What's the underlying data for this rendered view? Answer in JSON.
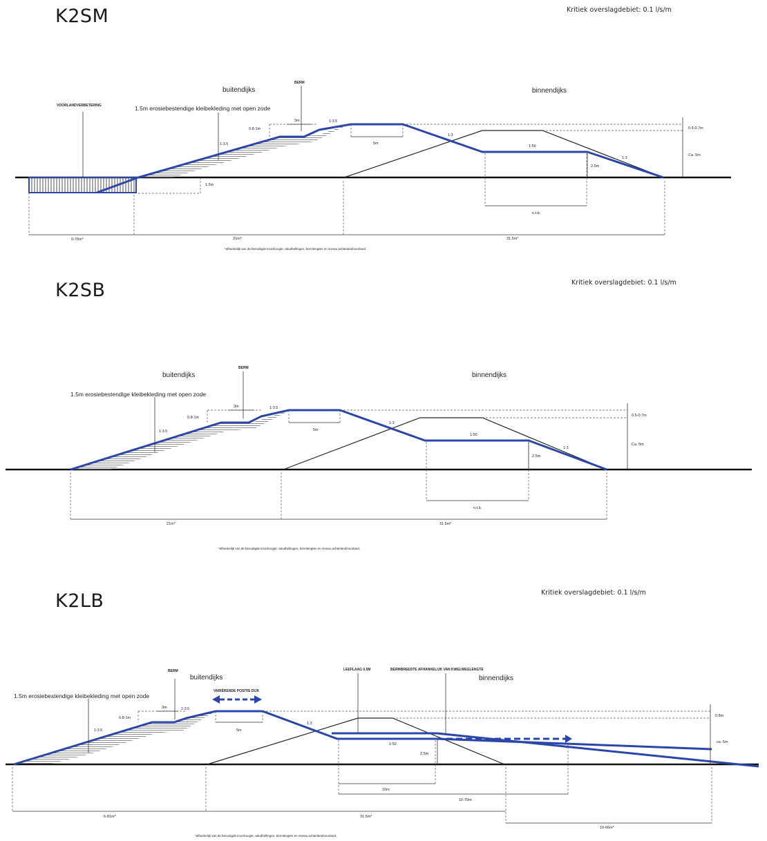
{
  "diagrams": [
    {
      "title": "K2SM",
      "kritiek": "Kritiek overslagdebiet: 0.1 l/s/m",
      "labels": {
        "buitendijks": "buitendijks",
        "binnendijks": "binnendijks",
        "kleibekleding": "1.5m erosiebestendige kleibekleding met open zode",
        "berm": "BERM",
        "voorland": "VOORLANDVERBETERING",
        "h_berm": "0.8-1m",
        "w_berm": "3m",
        "slope_upper": "1:3.5",
        "slope_lower": "1:3.5",
        "crest": "5m",
        "slope_in": "1:3",
        "flat": "1:50",
        "slope_out": "1:3",
        "dh": "0.5-0.7m",
        "height": "Ca. 5m",
        "h_back": "2.5m",
        "depth": "1.5m",
        "ntb": "n.t.b.",
        "dim1": "0-75m*",
        "dim2": "21m*",
        "dim3": "31.5m*",
        "footnote": "*afhankelijk van de benodigde kruinhoogte, taludhellingen, bermlengtes en niveau achterland/voorland."
      }
    },
    {
      "title": "K2SB",
      "kritiek": "Kritiek overslagdebiet: 0.1 l/s/m",
      "labels": {
        "buitendijks": "buitendijks",
        "binnendijks": "binnendijks",
        "kleibekleding": "1.5m erosiebestendige kleibekleding met open zode",
        "berm": "BERM",
        "h_berm": "0.8-1m",
        "w_berm": "3m",
        "slope_upper": "1:3.5",
        "slope_lower": "1:3.5",
        "crest": "5m",
        "slope_in": "1:3",
        "flat": "1:50",
        "slope_out": "1:3",
        "dh": "0.5-0.7m",
        "height": "Ca. 5m",
        "h_back": "2.5m",
        "ntb": "n.t.b.",
        "dim2": "21m*",
        "dim3": "31.5m*",
        "footnote": "*afhankelijk van de benodigde kruinhoogte, taludhellingen, bermlengtes en niveau achterland/voorland."
      }
    },
    {
      "title": "K2LB",
      "kritiek": "Kritiek overslagdebiet: 0.1 l/s/m",
      "labels": {
        "buitendijks": "buitendijks",
        "binnendijks": "binnendijks",
        "kleibekleding": "1.5m erosiebestendige kleibekleding met open zode",
        "berm": "BERM",
        "variable": "VARIËRENDE POSITIE DIJK",
        "leeflaag": "LEEFLAAG 0.5M",
        "bermbreedte": "BERMBREEDTE AFHANKELIJK VAN KWELWEGLENGTE",
        "h_berm": "0.8-1m",
        "w_berm": "3m",
        "slope_upper": "1:3.5",
        "slope_lower": "1:3.5",
        "crest": "5m",
        "slope_in": "1:3",
        "flat": "1:50",
        "dh": "0.8m",
        "height": "ca. 5m",
        "h_back": "2.5m",
        "dim_10": "10m",
        "dim_1070": "10-70m",
        "dim1": "6-81m*",
        "dim2": "31.5m*",
        "dim3": "10-66m*",
        "footnote": "*afhankelijk van de benodigde kruinhoogte, taludhellingen, bermlengtes en niveau achterland/voorland."
      }
    }
  ]
}
